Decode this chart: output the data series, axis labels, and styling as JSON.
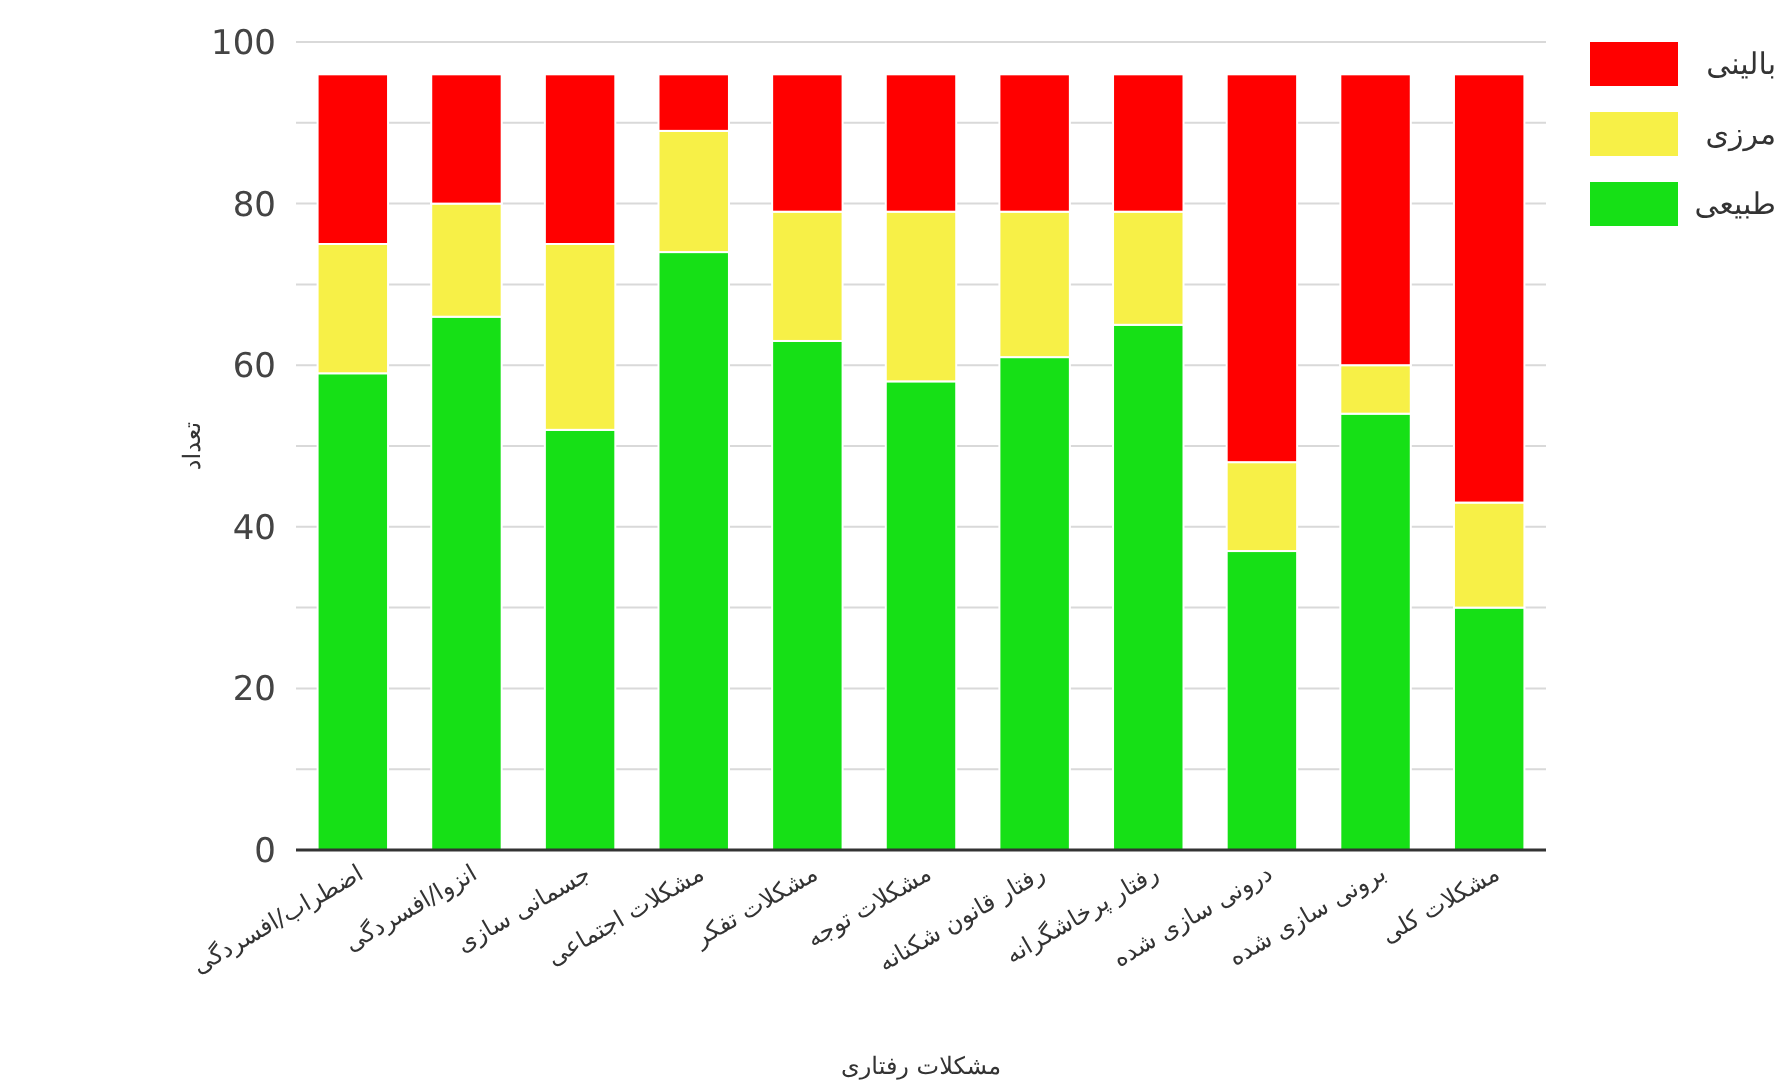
{
  "chart_data": {
    "type": "bar",
    "stacked": true,
    "xlabel": "مشکلات رفتاری",
    "ylabel": "تعداد",
    "categories": [
      "اضطراب/افسردگی",
      "انزوا/افسردگی",
      "جسمانی سازی",
      "مشکلات اجتماعی",
      "مشکلات تفکر",
      "مشکلات توجه",
      "رفتار قانون شکنانه",
      "رفتار پرخاشگرانه",
      "درونی سازی شده",
      "برونی سازی شده",
      "مشکلات کلی"
    ],
    "series": [
      {
        "name": "طبیعی",
        "color": "#16e016",
        "values": [
          59,
          66,
          52,
          74,
          63,
          58,
          61,
          65,
          37,
          54,
          30
        ]
      },
      {
        "name": "مرزی",
        "color": "#f7f047",
        "values": [
          16,
          14,
          23,
          15,
          16,
          21,
          18,
          14,
          11,
          6,
          13
        ]
      },
      {
        "name": "بالینی",
        "color": "#ff0000",
        "values": [
          21,
          16,
          21,
          7,
          17,
          17,
          17,
          17,
          48,
          36,
          53
        ]
      }
    ],
    "ylim": [
      0,
      100
    ],
    "yticks": [
      0,
      {
        "value": 10,
        "label": null
      },
      20,
      {
        "value": 30,
        "label": null
      },
      40,
      {
        "value": 50,
        "label": null
      },
      60,
      {
        "value": 70,
        "label": null
      },
      80,
      {
        "value": 90,
        "label": null
      },
      100
    ],
    "grid": "y",
    "legend": "top right"
  }
}
